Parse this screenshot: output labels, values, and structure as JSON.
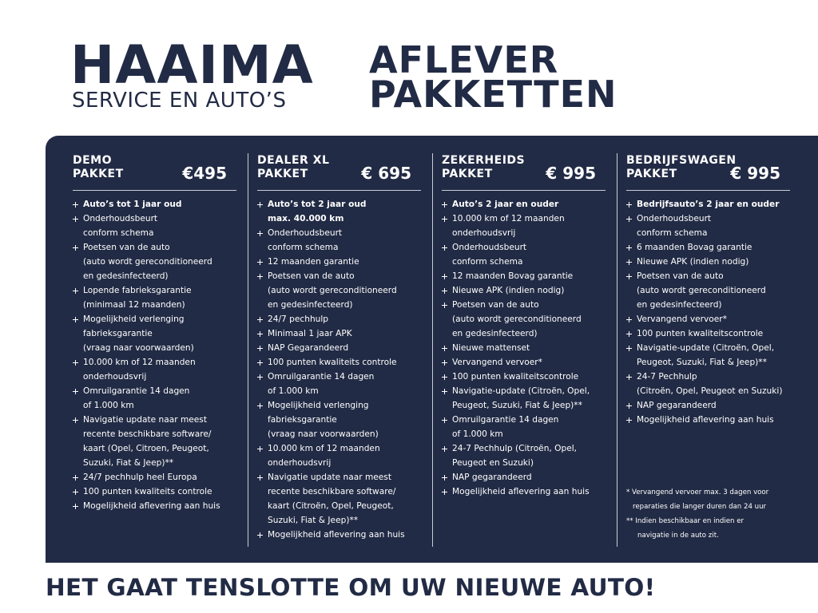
{
  "header": {
    "logo": "HAAIMA",
    "logo_subtitle": "SERVICE EN AUTO’S",
    "title": [
      "AFLEVER",
      "PAKKETTEN"
    ]
  },
  "columns": [
    {
      "title": [
        "DEMO",
        "PAKKET"
      ],
      "price": "€495",
      "items": [
        [
          "Auto’s tot 1 jaar oud"
        ],
        [
          "Onderhoudsbeurt",
          "conform schema"
        ],
        [
          "Poetsen van de auto",
          "(auto wordt gereconditioneerd",
          "en gedesinfecteerd)"
        ],
        [
          "Lopende fabrieksgarantie",
          "(minimaal 12 maanden)"
        ],
        [
          "Mogelijkheid verlenging",
          "fabrieksgarantie",
          "(vraag naar voorwaarden)"
        ],
        [
          "10.000 km of 12 maanden",
          "onderhoudsvrij"
        ],
        [
          "Omruilgarantie 14 dagen",
          "of 1.000 km"
        ],
        [
          "Navigatie update naar meest",
          "recente beschikbare software/",
          "kaart (Opel, Citroen,  Peugeot,",
          "Suzuki, Fiat & Jeep)**"
        ],
        [
          "24/7 pechhulp heel Europa"
        ],
        [
          "100 punten kwaliteits controle"
        ],
        [
          "Mogelijkheid aflevering aan huis"
        ]
      ]
    },
    {
      "title": [
        "DEALER XL",
        "PAKKET"
      ],
      "price": "€ 695",
      "items": [
        [
          "Auto’s tot 2 jaar oud",
          "max. 40.000 km"
        ],
        [
          "Onderhoudsbeurt",
          "conform schema"
        ],
        [
          "12 maanden garantie"
        ],
        [
          "Poetsen van de auto",
          "(auto wordt gereconditioneerd",
          "en gedesinfecteerd)"
        ],
        [
          "24/7 pechhulp"
        ],
        [
          "Minimaal 1 jaar APK"
        ],
        [
          "NAP Gegarandeerd"
        ],
        [
          "100 punten kwaliteits controle"
        ],
        [
          "Omruilgarantie 14 dagen",
          "of 1.000 km"
        ],
        [
          "Mogelijkheid verlenging",
          "fabrieksgarantie",
          "(vraag naar voorwaarden)"
        ],
        [
          "10.000 km of 12 maanden",
          "onderhoudsvrij"
        ],
        [
          "Navigatie update naar meest",
          "recente beschikbare software/",
          "kaart (Citroën, Opel, Peugeot,",
          "Suzuki, Fiat & Jeep)**"
        ],
        [
          "Mogelijkheid aflevering aan huis"
        ]
      ]
    },
    {
      "title": [
        "ZEKERHEIDS",
        "PAKKET"
      ],
      "price": "€ 995",
      "items": [
        [
          "Auto’s 2 jaar en ouder"
        ],
        [
          "10.000 km of 12 maanden",
          "onderhoudsvrij"
        ],
        [
          "Onderhoudsbeurt",
          "conform schema"
        ],
        [
          "12 maanden Bovag garantie"
        ],
        [
          "Nieuwe APK (indien nodig)"
        ],
        [
          "Poetsen van de auto",
          "(auto wordt gereconditioneerd",
          "en gedesinfecteerd)"
        ],
        [
          "Nieuwe mattenset"
        ],
        [
          "Vervangend vervoer*"
        ],
        [
          "100 punten kwaliteitscontrole"
        ],
        [
          "Navigatie-update (Citroën, Opel,",
          "Peugeot, Suzuki, Fiat & Jeep)**"
        ],
        [
          "Omruilgarantie 14 dagen",
          "of 1.000 km"
        ],
        [
          "24-7 Pechhulp (Citroën, Opel,",
          "Peugeot en Suzuki)"
        ],
        [
          "NAP gegarandeerd"
        ],
        [
          "Mogelijkheid aflevering aan huis"
        ]
      ]
    },
    {
      "title": [
        "BEDRIJFSWAGEN",
        "PAKKET"
      ],
      "price": "€ 995",
      "items": [
        [
          "Bedrijfsauto’s 2 jaar en ouder"
        ],
        [
          "Onderhoudsbeurt",
          "conform schema"
        ],
        [
          "6 maanden Bovag garantie"
        ],
        [
          "Nieuwe APK (indien nodig)"
        ],
        [
          "Poetsen van de auto",
          "(auto wordt gereconditioneerd",
          "en gedesinfecteerd)"
        ],
        [
          "Vervangend vervoer*"
        ],
        [
          "100 punten kwaliteitscontrole"
        ],
        [
          "Navigatie-update (Citroën, Opel,",
          "Peugeot, Suzuki, Fiat & Jeep)**"
        ],
        [
          "24-7 Pechhulp",
          "(Citroën, Opel, Peugeot en Suzuki)"
        ],
        [
          "NAP gegarandeerd"
        ],
        [
          "Mogelijkheid aflevering aan huis"
        ]
      ],
      "footnotes": [
        [
          "* Vervangend vervoer max. 3 dagen voor",
          "reparaties die langer duren dan 24 uur"
        ],
        [
          "** Indien beschikbaar en indien er",
          "navigatie in de auto zit."
        ]
      ]
    }
  ],
  "footer": "HET GAAT TENSLOTTE OM UW NIEUWE AUTO!"
}
